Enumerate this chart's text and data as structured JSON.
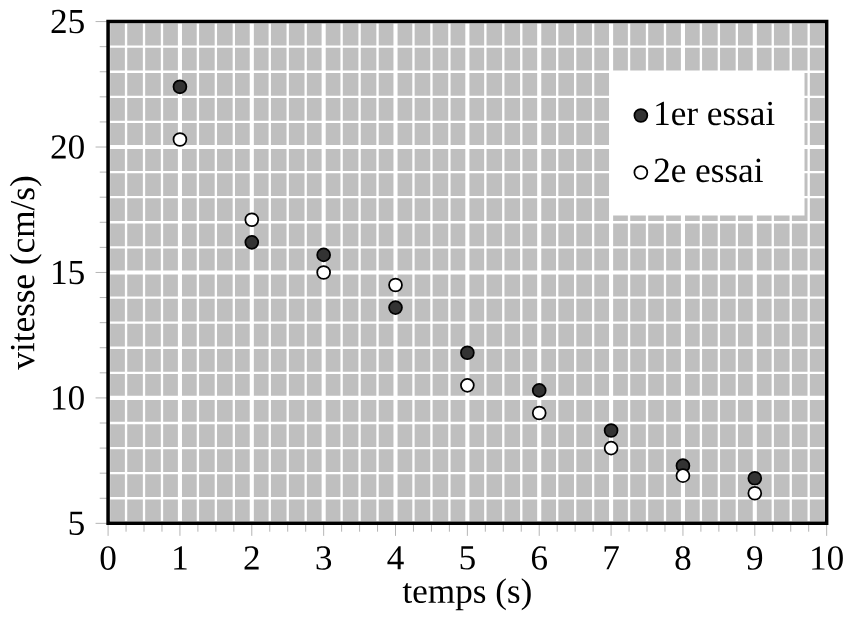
{
  "chart_data": {
    "type": "scatter",
    "xlabel": "temps (s)",
    "ylabel": "vitesse (cm/s)",
    "x": [
      1,
      2,
      3,
      4,
      5,
      6,
      7,
      8,
      9
    ],
    "series": [
      {
        "name": "1er essai",
        "color": "#333333",
        "values": [
          22.4,
          16.2,
          15.7,
          13.6,
          11.8,
          10.3,
          8.7,
          7.3,
          6.8
        ]
      },
      {
        "name": "2e essai",
        "color": "#ffffff",
        "values": [
          20.3,
          17.1,
          15.0,
          14.5,
          10.5,
          9.4,
          8.0,
          6.9,
          6.2
        ]
      }
    ],
    "xlim": [
      0,
      10
    ],
    "ylim": [
      5,
      25
    ],
    "xticks": [
      0,
      1,
      2,
      3,
      4,
      5,
      6,
      7,
      8,
      9,
      10
    ],
    "yticks": [
      5,
      10,
      15,
      20,
      25
    ],
    "grid": true,
    "legend": "top right",
    "marker": "circle"
  }
}
